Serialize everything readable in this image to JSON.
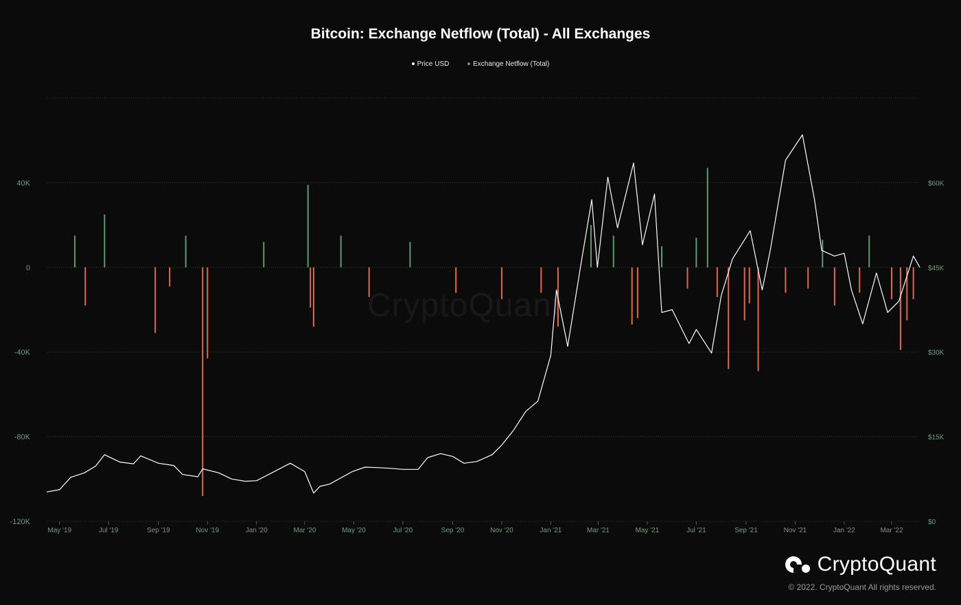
{
  "header": {
    "title": "Bitcoin: Exchange Netflow (Total) - All Exchanges",
    "legend": [
      {
        "label": "Price USD",
        "color": "#ffffff"
      },
      {
        "label": "Exchange Netflow (Total)",
        "color": "#5e9c70"
      }
    ]
  },
  "colors": {
    "background": "#0b0b0b",
    "inflow": "#5e9c70",
    "outflow": "#e06a4c",
    "price": "#ffffff",
    "axis_text": "#6e9f7a",
    "grid": "#3a3a3a"
  },
  "chart_data": {
    "type": "bar",
    "title": "Bitcoin: Exchange Netflow (Total) - All Exchanges",
    "x_range": [
      "2019-04-15",
      "2022-04-05"
    ],
    "x_ticks": [
      "May '19",
      "Jul '19",
      "Sep '19",
      "Nov '19",
      "Jan '20",
      "Mar '20",
      "May '20",
      "Jul '20",
      "Sep '20",
      "Nov '20",
      "Jan '21",
      "Mar '21",
      "May '21",
      "Jul '21",
      "Sep '21",
      "Nov '21",
      "Jan '22",
      "Mar '22"
    ],
    "y_left": {
      "label": "",
      "ylim": [
        -120000,
        80000
      ],
      "ticks": [
        "-120K",
        "-80K",
        "-40K",
        "0",
        "40K"
      ]
    },
    "y_right": {
      "label": "",
      "ylim": [
        0,
        75000
      ],
      "ticks": [
        "$0",
        "$15K",
        "$30K",
        "$45K",
        "$60K"
      ]
    },
    "grid": true,
    "legend_position": "top-center",
    "series": [
      {
        "name": "Price USD",
        "type": "line",
        "axis": "right",
        "x": [
          "2019-04-15",
          "2019-05-01",
          "2019-05-15",
          "2019-06-01",
          "2019-06-15",
          "2019-06-26",
          "2019-07-15",
          "2019-08-01",
          "2019-08-10",
          "2019-09-01",
          "2019-09-20",
          "2019-10-01",
          "2019-10-20",
          "2019-10-26",
          "2019-11-15",
          "2019-12-01",
          "2019-12-18",
          "2020-01-01",
          "2020-01-20",
          "2020-02-12",
          "2020-03-01",
          "2020-03-12",
          "2020-03-20",
          "2020-04-01",
          "2020-04-29",
          "2020-05-15",
          "2020-06-01",
          "2020-06-15",
          "2020-07-01",
          "2020-07-20",
          "2020-08-01",
          "2020-08-17",
          "2020-09-01",
          "2020-09-15",
          "2020-10-01",
          "2020-10-20",
          "2020-11-01",
          "2020-11-15",
          "2020-12-01",
          "2020-12-16",
          "2021-01-01",
          "2021-01-08",
          "2021-01-22",
          "2021-02-08",
          "2021-02-21",
          "2021-02-28",
          "2021-03-13",
          "2021-03-25",
          "2021-04-14",
          "2021-04-25",
          "2021-05-10",
          "2021-05-19",
          "2021-06-01",
          "2021-06-22",
          "2021-07-01",
          "2021-07-20",
          "2021-08-01",
          "2021-08-15",
          "2021-09-06",
          "2021-09-21",
          "2021-10-01",
          "2021-10-20",
          "2021-11-10",
          "2021-11-25",
          "2021-12-04",
          "2021-12-20",
          "2022-01-01",
          "2022-01-10",
          "2022-01-24",
          "2022-02-10",
          "2022-02-24",
          "2022-03-10",
          "2022-03-28",
          "2022-04-05"
        ],
        "values": [
          5200,
          5600,
          7800,
          8600,
          9800,
          11800,
          10500,
          10200,
          11600,
          10300,
          9900,
          8300,
          7900,
          9300,
          8600,
          7500,
          7100,
          7200,
          8600,
          10300,
          8800,
          5000,
          6200,
          6600,
          8800,
          9600,
          9500,
          9400,
          9200,
          9200,
          11300,
          12000,
          11500,
          10300,
          10600,
          11800,
          13500,
          16000,
          19500,
          21300,
          29400,
          41000,
          31000,
          46000,
          57000,
          45000,
          61000,
          52000,
          63500,
          49000,
          58000,
          37000,
          37500,
          31500,
          34000,
          29800,
          40000,
          46500,
          51500,
          41000,
          48000,
          64000,
          68500,
          57000,
          48000,
          47000,
          47500,
          41000,
          35000,
          44000,
          37000,
          39000,
          47000,
          45000
        ]
      },
      {
        "name": "Exchange Netflow (Total)",
        "type": "bar",
        "axis": "left",
        "x": [
          "2019-05-20",
          "2019-06-02",
          "2019-06-26",
          "2019-08-28",
          "2019-09-15",
          "2019-10-05",
          "2019-10-26",
          "2019-11-01",
          "2020-01-10",
          "2020-03-05",
          "2020-03-08",
          "2020-03-12",
          "2020-04-15",
          "2020-05-20",
          "2020-07-10",
          "2020-09-05",
          "2020-11-01",
          "2020-12-20",
          "2021-01-10",
          "2021-02-20",
          "2021-03-20",
          "2021-04-12",
          "2021-04-19",
          "2021-05-19",
          "2021-06-20",
          "2021-07-01",
          "2021-07-15",
          "2021-07-27",
          "2021-08-10",
          "2021-08-30",
          "2021-09-05",
          "2021-09-16",
          "2021-10-20",
          "2021-11-17",
          "2021-12-05",
          "2021-12-20",
          "2022-01-20",
          "2022-02-01",
          "2022-03-01",
          "2022-03-12",
          "2022-03-20",
          "2022-03-28"
        ],
        "values": [
          15000,
          -18000,
          25000,
          -31000,
          -9000,
          15000,
          -108000,
          -43000,
          12000,
          39000,
          -19000,
          -28000,
          15000,
          -14000,
          12000,
          -12000,
          -15000,
          -12000,
          -28000,
          20000,
          15000,
          -27000,
          -24000,
          10000,
          -10000,
          14000,
          47000,
          -14000,
          -48000,
          -25000,
          -17000,
          -49000,
          -12000,
          -10000,
          13000,
          -18000,
          -12000,
          15000,
          -15000,
          -39000,
          -25000,
          -15000
        ]
      }
    ]
  },
  "watermark": "CryptoQuant",
  "footer": {
    "brand": "CryptoQuant",
    "copyright": "© 2022. CryptoQuant All rights reserved."
  }
}
